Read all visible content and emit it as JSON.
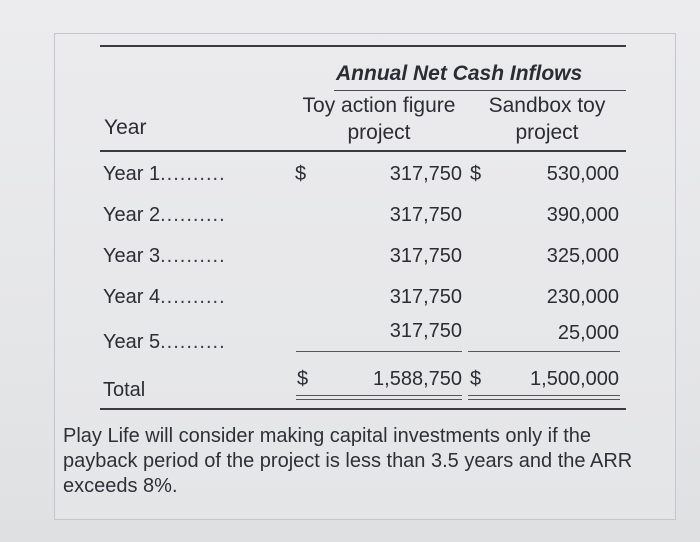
{
  "table": {
    "title": "Annual Net Cash Inflows",
    "col_year": "Year",
    "col_toy": "Toy action figure project",
    "col_toy_line1": "Toy action figure",
    "col_toy_line2": "project",
    "col_sandbox": "Sandbox toy project",
    "col_sandbox_line1": "Sandbox toy",
    "col_sandbox_line2": "project",
    "rows": [
      {
        "year": "Year 1",
        "dots": "..........",
        "currency": "$",
        "toy": "317,750",
        "toy_currency": "$",
        "sandbox": "530,000"
      },
      {
        "year": "Year 2",
        "dots": "..........",
        "toy": "317,750",
        "sandbox": "390,000"
      },
      {
        "year": "Year 3",
        "dots": "..........",
        "toy": "317,750",
        "sandbox": "325,000"
      },
      {
        "year": "Year 4",
        "dots": "..........",
        "toy": "317,750",
        "sandbox": "230,000"
      },
      {
        "year": "Year 5",
        "dots": "..........",
        "toy": "317,750",
        "sandbox": "25,000"
      }
    ],
    "total": {
      "label": "Total",
      "currency": "$",
      "toy": "1,588,750",
      "toy_currency": "$",
      "sandbox": "1,500,000"
    }
  },
  "note": "Play Life will consider making capital investments only if the payback period of the project is less than 3.5 years and the ARR exceeds 8%."
}
